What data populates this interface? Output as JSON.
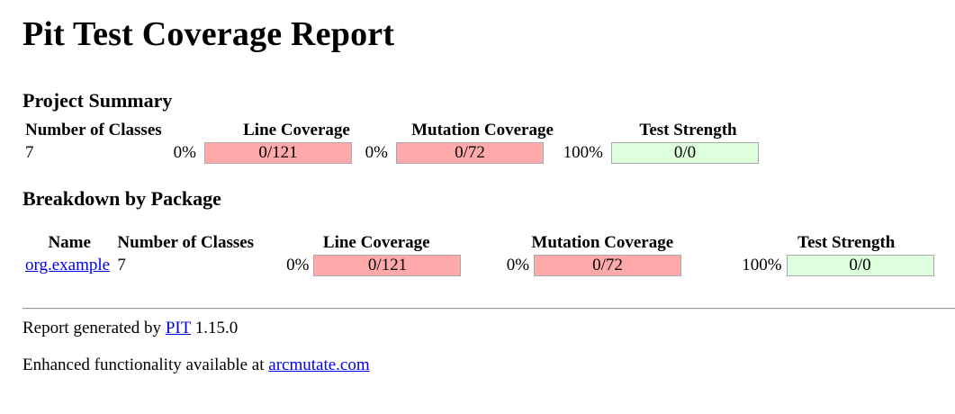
{
  "title": "Pit Test Coverage Report",
  "project_summary": {
    "heading": "Project Summary",
    "headers": {
      "classes": "Number of Classes",
      "line": "Line Coverage",
      "mutation": "Mutation Coverage",
      "strength": "Test Strength"
    },
    "classes": "7",
    "line": {
      "pct": "0%",
      "ratio": "0/121",
      "fraction": 0
    },
    "mutation": {
      "pct": "0%",
      "ratio": "0/72",
      "fraction": 0
    },
    "strength": {
      "pct": "100%",
      "ratio": "0/0",
      "fraction": 1
    }
  },
  "breakdown": {
    "heading": "Breakdown by Package",
    "headers": {
      "name": "Name",
      "classes": "Number of Classes",
      "line": "Line Coverage",
      "mutation": "Mutation Coverage",
      "strength": "Test Strength"
    },
    "rows": [
      {
        "name": "org.example",
        "classes": "7",
        "line": {
          "pct": "0%",
          "ratio": "0/121",
          "fraction": 0
        },
        "mutation": {
          "pct": "0%",
          "ratio": "0/72",
          "fraction": 0
        },
        "strength": {
          "pct": "100%",
          "ratio": "0/0",
          "fraction": 1
        }
      }
    ]
  },
  "footer": {
    "generated_prefix": "Report generated by ",
    "pit_link": "PIT",
    "version": " 1.15.0",
    "enhanced_prefix": "Enhanced functionality available at ",
    "arcmutate_link": "arcmutate.com"
  },
  "colors": {
    "bar_low": "#ffaaaa",
    "bar_high": "#ddffdd",
    "link": "#0000ee"
  }
}
